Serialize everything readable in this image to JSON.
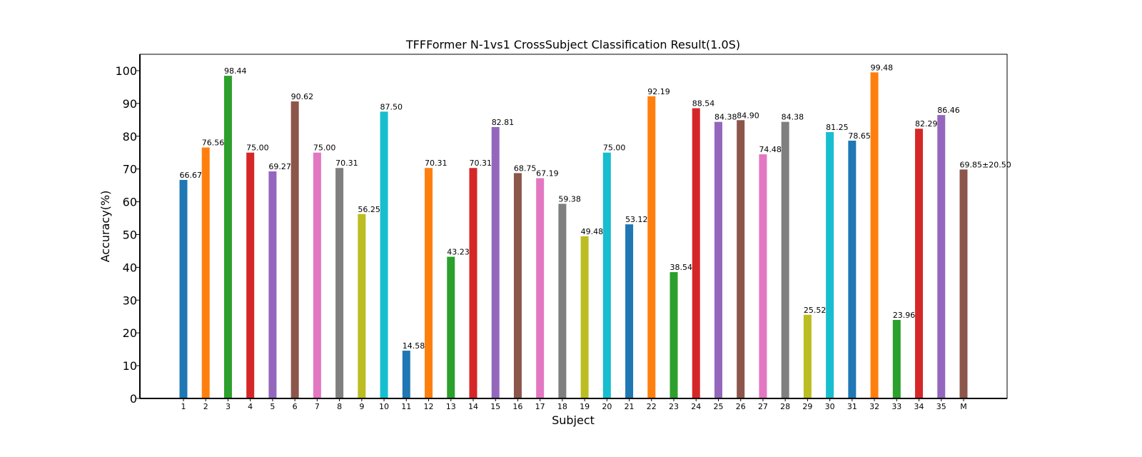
{
  "chart_data": {
    "type": "bar",
    "title": "TFFFormer N-1vs1 CrossSubject Classification Result(1.0S)",
    "xlabel": "Subject",
    "ylabel": "Accuracy(%)",
    "ylim": [
      0,
      105
    ],
    "yticks": [
      0,
      10,
      20,
      30,
      40,
      50,
      60,
      70,
      80,
      90,
      100
    ],
    "grid": false,
    "legend": "none",
    "categories": [
      "1",
      "2",
      "3",
      "4",
      "5",
      "6",
      "7",
      "8",
      "9",
      "10",
      "11",
      "12",
      "13",
      "14",
      "15",
      "16",
      "17",
      "18",
      "19",
      "20",
      "21",
      "22",
      "23",
      "24",
      "25",
      "26",
      "27",
      "28",
      "29",
      "30",
      "31",
      "32",
      "33",
      "34",
      "35",
      "M"
    ],
    "values": [
      66.67,
      76.56,
      98.44,
      75.0,
      69.27,
      90.62,
      75.0,
      70.31,
      56.25,
      87.5,
      14.58,
      70.31,
      43.23,
      70.31,
      82.81,
      68.75,
      67.19,
      59.38,
      49.48,
      75.0,
      53.12,
      92.19,
      38.54,
      88.54,
      84.38,
      84.9,
      74.48,
      84.38,
      25.52,
      81.25,
      78.65,
      99.48,
      23.96,
      82.29,
      86.46,
      69.85
    ],
    "value_labels": [
      "66.67",
      "76.56",
      "98.44",
      "75.00",
      "69.27",
      "90.62",
      "75.00",
      "70.31",
      "56.25",
      "87.50",
      "14.58",
      "70.31",
      "43.23",
      "70.31",
      "82.81",
      "68.75",
      "67.19",
      "59.38",
      "49.48",
      "75.00",
      "53.12",
      "92.19",
      "38.54",
      "88.54",
      "84.38",
      "84.90",
      "74.48",
      "84.38",
      "25.52",
      "81.25",
      "78.65",
      "99.48",
      "23.96",
      "82.29",
      "86.46",
      "69.85±20.50"
    ],
    "mean_label_color": "#ff0000",
    "bar_colors": [
      "#1f77b4",
      "#ff7f0e",
      "#2ca02c",
      "#d62728",
      "#9467bd",
      "#8c564b",
      "#e377c2",
      "#7f7f7f",
      "#bcbd22",
      "#17becf"
    ]
  }
}
